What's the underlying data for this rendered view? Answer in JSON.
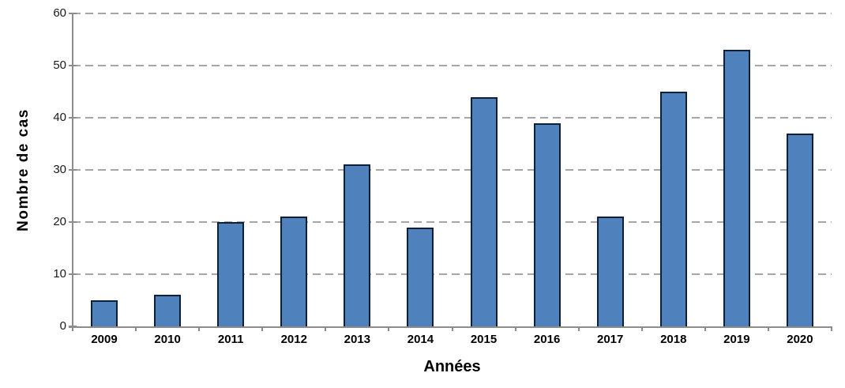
{
  "chart_data": {
    "type": "bar",
    "title": "",
    "categories": [
      "2009",
      "2010",
      "2011",
      "2012",
      "2013",
      "2014",
      "2015",
      "2016",
      "2017",
      "2018",
      "2019",
      "2020"
    ],
    "values": [
      5,
      6,
      20,
      21,
      31,
      19,
      44,
      39,
      21,
      45,
      53,
      37
    ],
    "xlabel": "Années",
    "ylabel": "Nombre de cas",
    "ylim": [
      0,
      60
    ],
    "yticks": [
      0,
      10,
      20,
      30,
      40,
      50,
      60
    ],
    "grid": "horizontal-dashed",
    "legend": "none",
    "colors": {
      "bar_fill": "#4F81BD",
      "bar_border": "#101F38",
      "gridline": "#A6A6A6",
      "axis_line": "#8C8C8C",
      "tick_label": "#1A1A1A",
      "category_label": "#000000",
      "background": "#FFFFFF"
    }
  }
}
